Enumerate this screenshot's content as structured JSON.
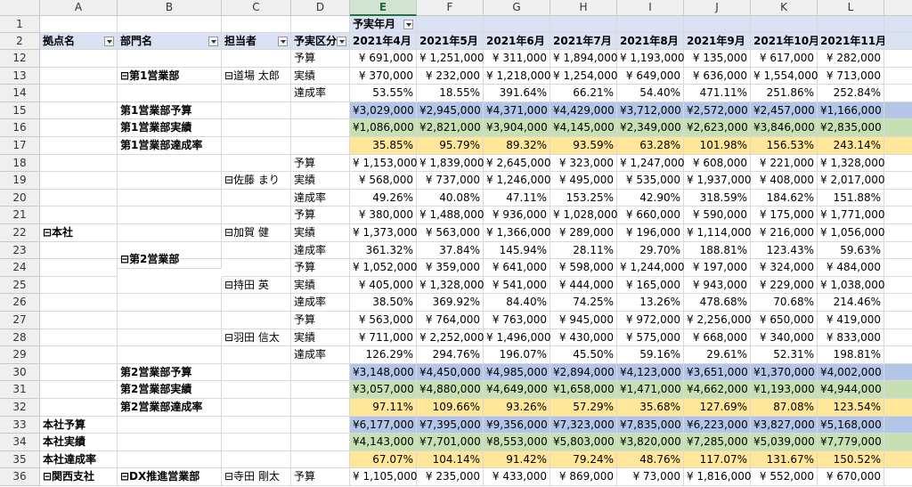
{
  "columns": [
    "A",
    "B",
    "C",
    "D",
    "E",
    "F",
    "G",
    "H",
    "I",
    "J",
    "K",
    "L"
  ],
  "selected_column": "E",
  "header_row_1": {
    "num": 1,
    "label": "予実年月"
  },
  "header_row_2": {
    "num": 2,
    "fields": [
      "拠点名",
      "部門名",
      "担当者",
      "予実区分"
    ],
    "months": [
      "2021年4月",
      "2021年5月",
      "2021年6月",
      "2021年7月",
      "2021年8月",
      "2021年9月",
      "2021年10月",
      "2021年11月"
    ]
  },
  "rows": [
    {
      "num": 12,
      "d": "予算",
      "values": [
        "¥ 691,000",
        "¥ 1,251,000",
        "¥ 311,000",
        "¥ 1,894,000",
        "¥ 1,193,000",
        "¥ 135,000",
        "¥ 617,000",
        "¥ 282,000"
      ]
    },
    {
      "num": 13,
      "b": "⊟第1営業部",
      "c": "⊟道場 太郎",
      "d": "実績",
      "values": [
        "¥ 370,000",
        "¥ 232,000",
        "¥ 1,218,000",
        "¥ 1,254,000",
        "¥ 649,000",
        "¥ 636,000",
        "¥ 1,554,000",
        "¥ 713,000"
      ]
    },
    {
      "num": 14,
      "d": "達成率",
      "values": [
        "53.55%",
        "18.55%",
        "391.64%",
        "66.21%",
        "54.40%",
        "471.11%",
        "251.86%",
        "252.84%"
      ]
    },
    {
      "num": 15,
      "b": "第1営業部予算",
      "fill": "#b4c6e7",
      "values": [
        "¥3,029,000",
        "¥2,945,000",
        "¥4,371,000",
        "¥4,429,000",
        "¥3,712,000",
        "¥2,572,000",
        "¥2,457,000",
        "¥1,166,000"
      ]
    },
    {
      "num": 16,
      "b": "第1営業部実績",
      "fill": "#c6e0b4",
      "values": [
        "¥1,086,000",
        "¥2,821,000",
        "¥3,904,000",
        "¥4,145,000",
        "¥2,349,000",
        "¥2,623,000",
        "¥3,846,000",
        "¥2,835,000"
      ]
    },
    {
      "num": 17,
      "b": "第1営業部達成率",
      "fill": "#ffe699",
      "values": [
        "35.85%",
        "95.79%",
        "89.32%",
        "93.59%",
        "63.28%",
        "101.98%",
        "156.53%",
        "243.14%"
      ]
    },
    {
      "num": 18,
      "d": "予算",
      "values": [
        "¥ 1,153,000",
        "¥ 1,839,000",
        "¥ 2,645,000",
        "¥ 323,000",
        "¥ 1,247,000",
        "¥ 608,000",
        "¥ 221,000",
        "¥ 1,328,000"
      ]
    },
    {
      "num": 19,
      "c": "⊟佐藤 まり",
      "d": "実績",
      "values": [
        "¥ 568,000",
        "¥ 737,000",
        "¥ 1,246,000",
        "¥ 495,000",
        "¥ 535,000",
        "¥ 1,937,000",
        "¥ 408,000",
        "¥ 2,017,000"
      ]
    },
    {
      "num": 20,
      "d": "達成率",
      "values": [
        "49.26%",
        "40.08%",
        "47.11%",
        "153.25%",
        "42.90%",
        "318.59%",
        "184.62%",
        "151.88%"
      ]
    },
    {
      "num": 21,
      "d": "予算",
      "values": [
        "¥ 380,000",
        "¥ 1,488,000",
        "¥ 936,000",
        "¥ 1,028,000",
        "¥ 660,000",
        "¥ 590,000",
        "¥ 175,000",
        "¥ 1,771,000"
      ]
    },
    {
      "num": 22,
      "a": "⊟本社",
      "c": "⊟加賀 健",
      "d": "実績",
      "values": [
        "¥ 1,373,000",
        "¥ 563,000",
        "¥ 1,366,000",
        "¥ 289,000",
        "¥ 196,000",
        "¥ 1,114,000",
        "¥ 216,000",
        "¥ 1,056,000"
      ]
    },
    {
      "num": 23,
      "d": "達成率",
      "values": [
        "361.32%",
        "37.84%",
        "145.94%",
        "28.11%",
        "29.70%",
        "188.81%",
        "123.43%",
        "59.63%"
      ]
    },
    {
      "num": 24,
      "b": "⊟第2営業部",
      "d": "予算",
      "values": [
        "¥ 1,052,000",
        "¥ 359,000",
        "¥ 641,000",
        "¥ 598,000",
        "¥ 1,244,000",
        "¥ 197,000",
        "¥ 324,000",
        "¥ 484,000"
      ]
    },
    {
      "num": 25,
      "c": "⊟持田 英",
      "d": "実績",
      "values": [
        "¥ 405,000",
        "¥ 1,328,000",
        "¥ 541,000",
        "¥ 444,000",
        "¥ 165,000",
        "¥ 943,000",
        "¥ 229,000",
        "¥ 1,038,000"
      ]
    },
    {
      "num": 26,
      "d": "達成率",
      "values": [
        "38.50%",
        "369.92%",
        "84.40%",
        "74.25%",
        "13.26%",
        "478.68%",
        "70.68%",
        "214.46%"
      ]
    },
    {
      "num": 27,
      "d": "予算",
      "values": [
        "¥ 563,000",
        "¥ 764,000",
        "¥ 763,000",
        "¥ 945,000",
        "¥ 972,000",
        "¥ 2,256,000",
        "¥ 650,000",
        "¥ 419,000"
      ]
    },
    {
      "num": 28,
      "c": "⊟羽田 信太",
      "d": "実績",
      "values": [
        "¥ 711,000",
        "¥ 2,252,000",
        "¥ 1,496,000",
        "¥ 430,000",
        "¥ 575,000",
        "¥ 668,000",
        "¥ 340,000",
        "¥ 833,000"
      ]
    },
    {
      "num": 29,
      "d": "達成率",
      "values": [
        "126.29%",
        "294.76%",
        "196.07%",
        "45.50%",
        "59.16%",
        "29.61%",
        "52.31%",
        "198.81%"
      ]
    },
    {
      "num": 30,
      "b": "第2営業部予算",
      "fill": "#b4c6e7",
      "values": [
        "¥3,148,000",
        "¥4,450,000",
        "¥4,985,000",
        "¥2,894,000",
        "¥4,123,000",
        "¥3,651,000",
        "¥1,370,000",
        "¥4,002,000"
      ]
    },
    {
      "num": 31,
      "b": "第2営業部実績",
      "fill": "#c6e0b4",
      "values": [
        "¥3,057,000",
        "¥4,880,000",
        "¥4,649,000",
        "¥1,658,000",
        "¥1,471,000",
        "¥4,662,000",
        "¥1,193,000",
        "¥4,944,000"
      ]
    },
    {
      "num": 32,
      "b": "第2営業部達成率",
      "fill": "#ffe699",
      "values": [
        "97.11%",
        "109.66%",
        "93.26%",
        "57.29%",
        "35.68%",
        "127.69%",
        "87.08%",
        "123.54%"
      ]
    },
    {
      "num": 33,
      "a": "本社予算",
      "fill": "#b4c6e7",
      "values": [
        "¥6,177,000",
        "¥7,395,000",
        "¥9,356,000",
        "¥7,323,000",
        "¥7,835,000",
        "¥6,223,000",
        "¥3,827,000",
        "¥5,168,000"
      ]
    },
    {
      "num": 34,
      "a": "本社実績",
      "fill": "#c6e0b4",
      "values": [
        "¥4,143,000",
        "¥7,701,000",
        "¥8,553,000",
        "¥5,803,000",
        "¥3,820,000",
        "¥7,285,000",
        "¥5,039,000",
        "¥7,779,000"
      ]
    },
    {
      "num": 35,
      "a": "本社達成率",
      "fill": "#ffe699",
      "values": [
        "67.07%",
        "104.14%",
        "91.42%",
        "79.24%",
        "48.76%",
        "117.07%",
        "131.67%",
        "150.52%"
      ]
    },
    {
      "num": 36,
      "a": "⊟関西支社",
      "b": "⊟DX推進営業部",
      "c": "⊟寺田 剛太",
      "d": "予算",
      "values": [
        "¥ 1,105,000",
        "¥ 235,000",
        "¥ 433,000",
        "¥ 869,000",
        "¥ 73,000",
        "¥ 1,816,000",
        "¥ 552,000",
        "¥ 670,000"
      ]
    }
  ]
}
